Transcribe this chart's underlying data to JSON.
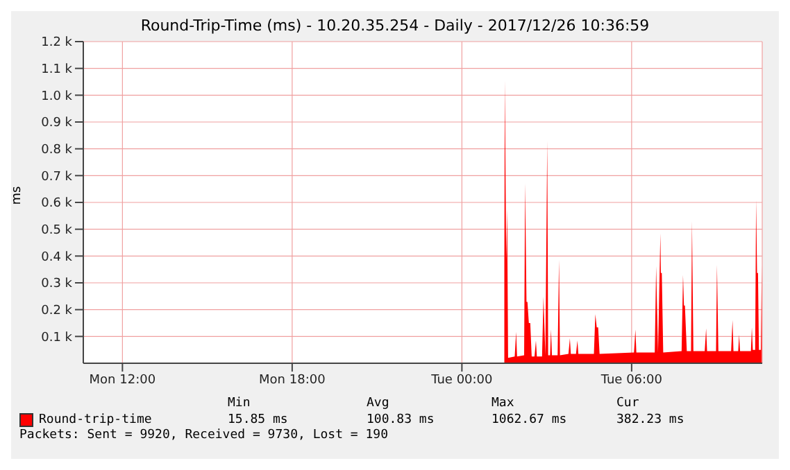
{
  "chart_data": {
    "type": "area",
    "title": "Round-Trip-Time (ms) - 10.20.35.254 - Daily - 2017/12/26 10:36:59",
    "ylabel": "ms",
    "x": [
      "2017-12-26T01:30",
      "2017-12-26T01:31",
      "2017-12-26T01:34",
      "2017-12-26T01:36",
      "2017-12-26T01:38",
      "2017-12-26T01:52",
      "2017-12-26T01:55",
      "2017-12-26T01:57",
      "2017-12-26T02:12",
      "2017-12-26T02:14",
      "2017-12-26T02:17",
      "2017-12-26T02:19",
      "2017-12-26T02:22",
      "2017-12-26T02:25",
      "2017-12-26T02:28",
      "2017-12-26T02:34",
      "2017-12-26T02:37",
      "2017-12-26T02:39",
      "2017-12-26T02:50",
      "2017-12-26T02:53",
      "2017-12-26T02:57",
      "2017-12-26T03:01",
      "2017-12-26T03:03",
      "2017-12-26T03:07",
      "2017-12-26T03:09",
      "2017-12-26T03:11",
      "2017-12-26T03:23",
      "2017-12-26T03:26",
      "2017-12-26T03:28",
      "2017-12-26T03:46",
      "2017-12-26T03:49",
      "2017-12-26T03:51",
      "2017-12-26T04:02",
      "2017-12-26T04:05",
      "2017-12-26T04:07",
      "2017-12-26T04:40",
      "2017-12-26T04:43",
      "2017-12-26T04:46",
      "2017-12-26T04:49",
      "2017-12-26T04:52",
      "2017-12-26T06:05",
      "2017-12-26T06:08",
      "2017-12-26T06:10",
      "2017-12-26T06:49",
      "2017-12-26T06:52",
      "2017-12-26T06:56",
      "2017-12-26T07:01",
      "2017-12-26T07:02",
      "2017-12-26T07:04",
      "2017-12-26T07:07",
      "2017-12-26T07:46",
      "2017-12-26T07:49",
      "2017-12-26T07:51",
      "2017-12-26T07:53",
      "2017-12-26T07:57",
      "2017-12-26T08:06",
      "2017-12-26T08:08",
      "2017-12-26T08:11",
      "2017-12-26T08:35",
      "2017-12-26T08:38",
      "2017-12-26T08:40",
      "2017-12-26T08:59",
      "2017-12-26T09:01",
      "2017-12-26T09:04",
      "2017-12-26T09:31",
      "2017-12-26T09:34",
      "2017-12-26T09:36",
      "2017-12-26T09:46",
      "2017-12-26T09:48",
      "2017-12-26T09:50",
      "2017-12-26T10:13",
      "2017-12-26T10:15",
      "2017-12-26T10:17",
      "2017-12-26T10:22",
      "2017-12-26T10:24",
      "2017-12-26T10:26",
      "2017-12-26T10:28",
      "2017-12-26T10:30",
      "2017-12-26T10:34",
      "2017-12-26T10:36"
    ],
    "series": [
      {
        "name": "Round-trip-time",
        "color": "#ff0000",
        "values": [
          380,
          1055,
          380,
          574,
          20,
          25,
          117,
          25,
          30,
          671,
          229,
          229,
          150,
          150,
          25,
          25,
          85,
          25,
          25,
          248,
          30,
          830,
          30,
          30,
          126,
          30,
          30,
          386,
          30,
          35,
          93,
          35,
          35,
          85,
          35,
          35,
          183,
          134,
          134,
          35,
          40,
          126,
          40,
          40,
          362,
          40,
          484,
          337,
          337,
          40,
          45,
          329,
          215,
          215,
          45,
          45,
          530,
          45,
          45,
          130,
          45,
          45,
          367,
          45,
          45,
          161,
          45,
          45,
          106,
          45,
          45,
          134,
          50,
          50,
          610,
          337,
          337,
          50,
          50,
          365
        ]
      }
    ],
    "xlim": [
      "2017-12-25T10:37",
      "2017-12-26T10:37"
    ],
    "xticks": [
      {
        "value": "2017-12-25T12:00",
        "label": "Mon 12:00"
      },
      {
        "value": "2017-12-25T18:00",
        "label": "Mon 18:00"
      },
      {
        "value": "2017-12-26T00:00",
        "label": "Tue 00:00"
      },
      {
        "value": "2017-12-26T06:00",
        "label": "Tue 06:00"
      }
    ],
    "ylim": [
      0,
      1200
    ],
    "yticks": [
      {
        "value": 100,
        "label": "0.1 k"
      },
      {
        "value": 200,
        "label": "0.2 k"
      },
      {
        "value": 300,
        "label": "0.3 k"
      },
      {
        "value": 400,
        "label": "0.4 k"
      },
      {
        "value": 500,
        "label": "0.5 k"
      },
      {
        "value": 600,
        "label": "0.6 k"
      },
      {
        "value": 700,
        "label": "0.7 k"
      },
      {
        "value": 800,
        "label": "0.8 k"
      },
      {
        "value": 900,
        "label": "0.9 k"
      },
      {
        "value": 1000,
        "label": "1.0 k"
      },
      {
        "value": 1100,
        "label": "1.1 k"
      },
      {
        "value": 1200,
        "label": "1.2 k"
      }
    ],
    "grid": true,
    "legend": "bottom",
    "annotations": [
      "Min",
      "Avg",
      "Max",
      "Cur",
      "15.85 ms",
      "100.83 ms",
      "1062.67 ms",
      "382.23 ms",
      "Packets: Sent = 9920, Received = 9730, Lost = 190"
    ]
  }
}
